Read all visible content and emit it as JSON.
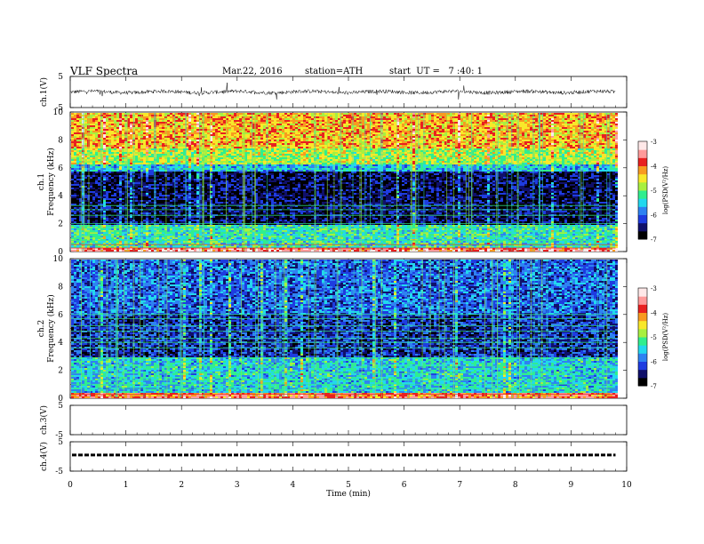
{
  "header": {
    "title": "VLF Spectra",
    "date": "Mar.22, 2016",
    "station": "station=ATH",
    "start": "start  UT =   7 :40: 1"
  },
  "colors": {
    "colormap": [
      "#000000",
      "#10106a",
      "#1e3ce0",
      "#2e82f2",
      "#22d8ee",
      "#30ee8e",
      "#a8f040",
      "#f8e82a",
      "#f89a20",
      "#e82020",
      "#ff9a9a",
      "#ffe8e8"
    ]
  },
  "chart_data": [
    {
      "type": "line",
      "name": "ch1-waveform",
      "ylabel": "ch.1(V)",
      "ylim": [
        -5,
        5
      ],
      "yticks": [
        "5",
        "-5"
      ],
      "xlim": [
        0,
        10
      ],
      "baseline": 0,
      "noise_amplitude": 0.6
    },
    {
      "type": "heatmap",
      "name": "ch1-spectrogram",
      "ylabel": "ch.1\nFrequency (kHz)",
      "ylim": [
        0,
        10
      ],
      "yticks": [
        "0",
        "2",
        "4",
        "6",
        "8",
        "10"
      ],
      "xlim": [
        0,
        10
      ],
      "data_end_min": 9.8,
      "colorbar": {
        "label": "log(PSD(V²/Hz)",
        "ticks": [
          "-3",
          "-4",
          "-5",
          "-6",
          "-7"
        ],
        "range": [
          -7,
          -3
        ]
      },
      "bands": [
        {
          "f0": 0.0,
          "f1": 0.3,
          "level": -3.6
        },
        {
          "f0": 0.3,
          "f1": 2.0,
          "level": -5.3
        },
        {
          "f0": 2.0,
          "f1": 5.8,
          "level": -6.6
        },
        {
          "f0": 5.8,
          "f1": 6.3,
          "level": -5.6
        },
        {
          "f0": 6.3,
          "f1": 7.5,
          "level": -4.8
        },
        {
          "f0": 7.5,
          "f1": 10.0,
          "level": -4.3
        }
      ],
      "lines_khz": [
        0.25,
        0.5,
        0.8,
        1.1,
        1.4,
        1.7,
        2.0,
        2.6,
        3.0,
        3.3
      ]
    },
    {
      "type": "heatmap",
      "name": "ch2-spectrogram",
      "ylabel": "ch.2\nFrequency (kHz)",
      "ylim": [
        0,
        10
      ],
      "yticks": [
        "0",
        "2",
        "4",
        "6",
        "8",
        "10"
      ],
      "xlim": [
        0,
        10
      ],
      "data_end_min": 9.8,
      "colorbar": {
        "label": "log(PSD(V²/Hz)",
        "ticks": [
          "-3",
          "-4",
          "-5",
          "-6",
          "-7"
        ],
        "range": [
          -7,
          -3
        ]
      },
      "bands": [
        {
          "f0": 0.0,
          "f1": 0.4,
          "level": -3.9
        },
        {
          "f0": 0.4,
          "f1": 3.0,
          "level": -5.5
        },
        {
          "f0": 3.0,
          "f1": 6.0,
          "level": -6.3
        },
        {
          "f0": 6.0,
          "f1": 10.0,
          "level": -6.0
        }
      ],
      "lines_khz": [
        0.3,
        0.7,
        1.0,
        1.3,
        1.8,
        2.3,
        2.9,
        3.6,
        4.0,
        4.3,
        4.8,
        5.2,
        5.7,
        6.0
      ]
    },
    {
      "type": "line",
      "name": "ch3-waveform",
      "ylabel": "ch.3(V)",
      "ylim": [
        -5,
        5
      ],
      "yticks": [
        "5",
        "-5"
      ],
      "xlim": [
        0,
        10
      ],
      "empty": true
    },
    {
      "type": "line",
      "name": "ch4-waveform",
      "ylabel": "ch.4(V)",
      "ylim": [
        -5,
        5
      ],
      "yticks": [
        "5",
        "-5"
      ],
      "xlim": [
        0,
        10
      ],
      "baseline": 0.5,
      "pattern": "dashed"
    }
  ],
  "xaxis": {
    "label": "Time  (min)",
    "ticks": [
      "0",
      "1",
      "2",
      "3",
      "4",
      "5",
      "6",
      "7",
      "8",
      "9",
      "10"
    ]
  }
}
